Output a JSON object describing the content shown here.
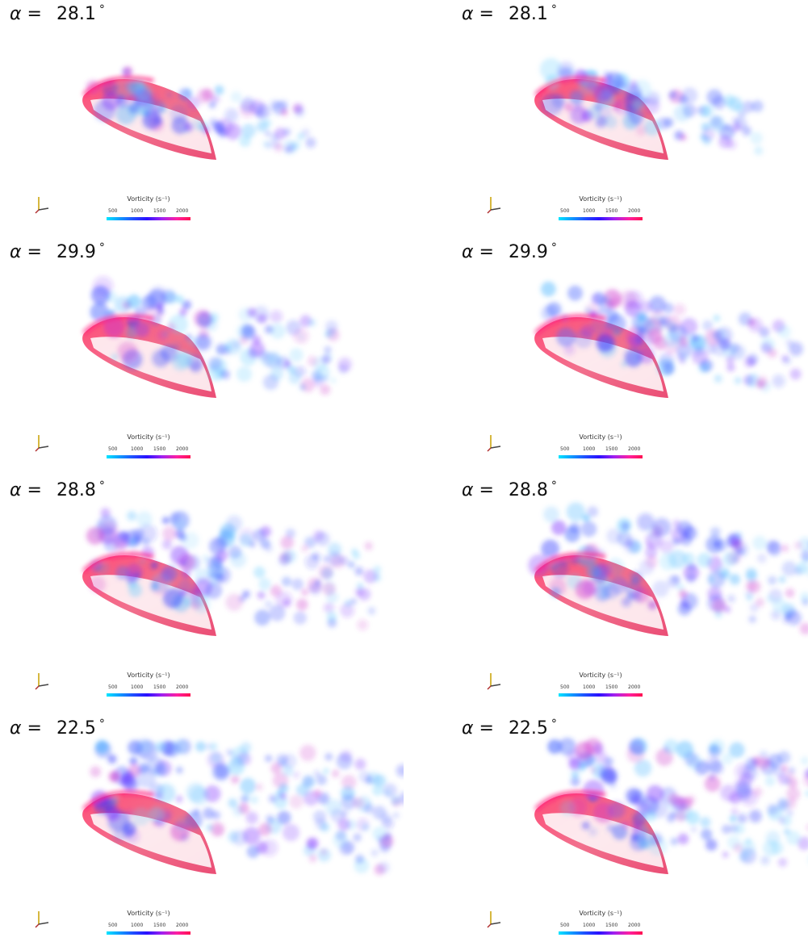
{
  "colorbar": {
    "label": "Vorticity (s⁻¹)",
    "ticks": [
      "500",
      "1000",
      "1500",
      "2000"
    ],
    "colors": [
      "#00e5ff",
      "#1f4dff",
      "#a020f0",
      "#ff1050"
    ]
  },
  "alpha_symbol": "α =",
  "degree_symbol": "°",
  "panels": [
    {
      "alpha": "28.1",
      "column": "left"
    },
    {
      "alpha": "28.1",
      "column": "right"
    },
    {
      "alpha": "29.9",
      "column": "left"
    },
    {
      "alpha": "29.9",
      "column": "right"
    },
    {
      "alpha": "28.8",
      "column": "left"
    },
    {
      "alpha": "28.8",
      "column": "right"
    },
    {
      "alpha": "22.5",
      "column": "left"
    },
    {
      "alpha": "22.5",
      "column": "right"
    }
  ]
}
